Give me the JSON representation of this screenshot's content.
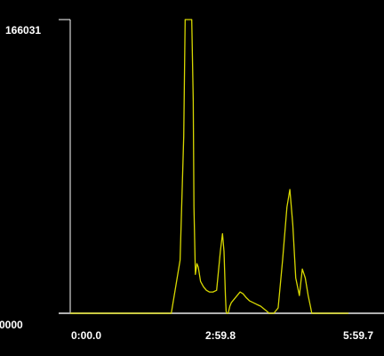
{
  "chart_data": {
    "type": "line",
    "title": "",
    "xlabel": "",
    "ylabel": "",
    "y_tick_labels": [
      "166031",
      "0000"
    ],
    "x_tick_labels": [
      "0:00.0",
      "2:59.8",
      "5:59.7"
    ],
    "x_unit": "seconds",
    "xlim": [
      0,
      380
    ],
    "ylim": [
      0,
      166031
    ],
    "grid": false,
    "series": [
      {
        "color": "#d8d800",
        "x": [
          0,
          138,
          150,
          155,
          157,
          159,
          162,
          166,
          168,
          169,
          171,
          173,
          175,
          178,
          182,
          186,
          190,
          195,
          200,
          205,
          208,
          210,
          212,
          213,
          214,
          215,
          216,
          218,
          220,
          224,
          228,
          232,
          236,
          240,
          245,
          250,
          255,
          260,
          266,
          272,
          278,
          284,
          290,
          296,
          300,
          304,
          308,
          313,
          317,
          321,
          325,
          328,
          330,
          333,
          337,
          340,
          345,
          380
        ],
        "y": [
          0,
          0,
          30000,
          100000,
          166031,
          166031,
          166031,
          166031,
          120000,
          60000,
          22000,
          28000,
          26000,
          18000,
          15000,
          13000,
          12000,
          12000,
          13000,
          35000,
          45000,
          35000,
          10000,
          1000,
          0,
          0,
          500,
          4000,
          6000,
          8000,
          10000,
          12000,
          11000,
          9000,
          7000,
          6000,
          5000,
          4000,
          2000,
          0,
          0,
          3000,
          30000,
          60000,
          70000,
          50000,
          20000,
          10000,
          25000,
          20000,
          10000,
          4000,
          0,
          0,
          0,
          0,
          0,
          0
        ]
      }
    ]
  }
}
